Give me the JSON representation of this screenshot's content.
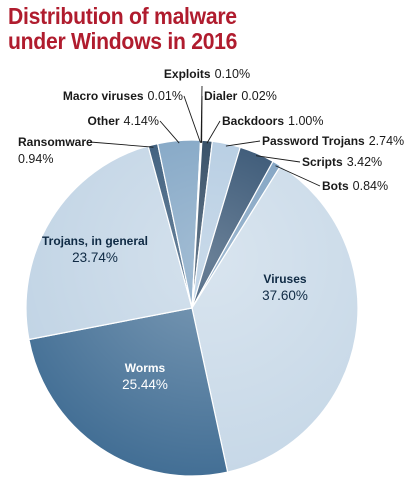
{
  "chart_data": {
    "type": "pie",
    "title_lines": [
      "Distribution of malware",
      "under Windows in 2016"
    ],
    "slices": [
      {
        "label": "Viruses",
        "value": 37.6,
        "display": "37.60%",
        "color": "#c4d6e6"
      },
      {
        "label": "Worms",
        "value": 25.44,
        "display": "25.44%",
        "color": "#3a6890"
      },
      {
        "label": "Trojans, in general",
        "value": 23.74,
        "display": "23.74%",
        "color": "#bdd1e3"
      },
      {
        "label": "Ransomware",
        "value": 0.94,
        "display": "0.94%",
        "color": "#1a4166"
      },
      {
        "label": "Other",
        "value": 4.14,
        "display": "4.14%",
        "color": "#6f98bc"
      },
      {
        "label": "Macro viruses",
        "value": 0.01,
        "display": "0.01%",
        "color": "#0c2a47"
      },
      {
        "label": "Exploits",
        "value": 0.1,
        "display": "0.10%",
        "color": "#0c2a47"
      },
      {
        "label": "Dialer",
        "value": 0.02,
        "display": "0.02%",
        "color": "#0c2a47"
      },
      {
        "label": "Backdoors",
        "value": 1.0,
        "display": "1.00%",
        "color": "#0c2a47"
      },
      {
        "label": "Password Trojans",
        "value": 2.74,
        "display": "2.74%",
        "color": "#a9c4dd"
      },
      {
        "label": "Scripts",
        "value": 3.42,
        "display": "3.42%",
        "color": "#16395d"
      },
      {
        "label": "Bots",
        "value": 0.84,
        "display": "0.84%",
        "color": "#6a92b7"
      }
    ]
  }
}
